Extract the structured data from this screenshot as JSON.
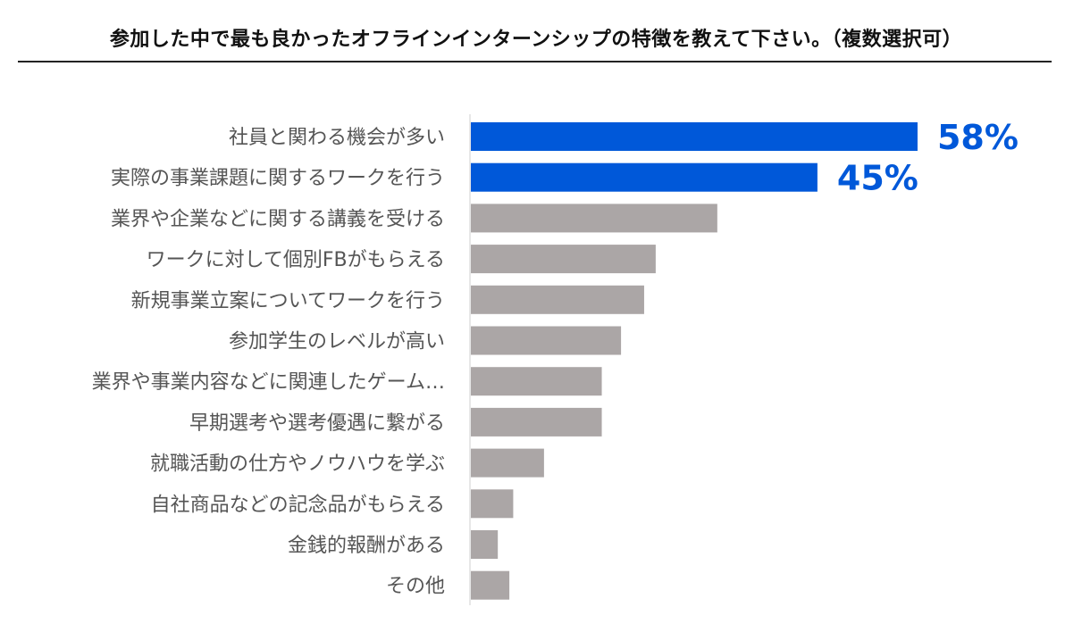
{
  "colors": {
    "highlight": "#0058D9",
    "default": "#ABA6A6",
    "axis": "#cfcfcf"
  },
  "chart_data": {
    "type": "bar",
    "orientation": "horizontal",
    "title": "参加した中で最も良かったオフラインインターンシップの特徴を教えて下さい。（複数選択可）",
    "categories": [
      "社員と関わる機会が多い",
      "実際の事業課題に関するワークを行う",
      "業界や企業などに関する講義を受ける",
      "ワークに対して個別FBがもらえる",
      "新規事業立案についてワークを行う",
      "参加学生のレベルが高い",
      "業界や事業内容などに関連したゲーム…",
      "早期選考や選考優遇に繋がる",
      "就職活動の仕方やノウハウを学ぶ",
      "自社商品などの記念品がもらえる",
      "金銭的報酬がある",
      "その他"
    ],
    "values": [
      58,
      45,
      32,
      24,
      22.5,
      19.5,
      17,
      17,
      9.5,
      5.5,
      3.5,
      5
    ],
    "highlighted": [
      true,
      true,
      false,
      false,
      false,
      false,
      false,
      false,
      false,
      false,
      false,
      false
    ],
    "value_labels": [
      "58%",
      "45%",
      "",
      "",
      "",
      "",
      "",
      "",
      "",
      "",
      "",
      ""
    ],
    "xlim": [
      0,
      100
    ],
    "xlabel": "",
    "ylabel": ""
  }
}
